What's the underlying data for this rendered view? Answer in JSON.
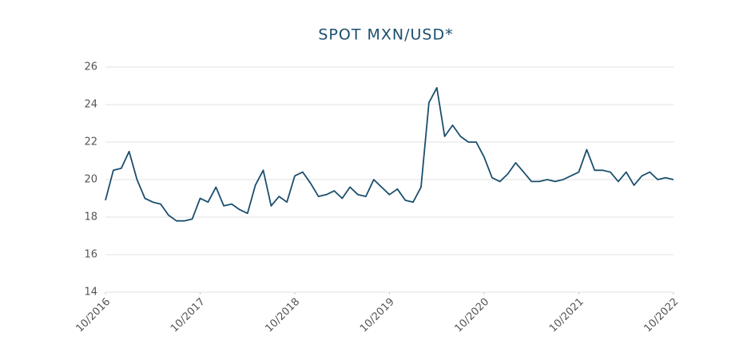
{
  "chart_data": {
    "type": "line",
    "title": "SPOT MXN/USD*",
    "x": [
      "2016-10",
      "2016-11",
      "2016-12",
      "2017-01",
      "2017-02",
      "2017-03",
      "2017-04",
      "2017-05",
      "2017-06",
      "2017-07",
      "2017-08",
      "2017-09",
      "2017-10",
      "2017-11",
      "2017-12",
      "2018-01",
      "2018-02",
      "2018-03",
      "2018-04",
      "2018-05",
      "2018-06",
      "2018-07",
      "2018-08",
      "2018-09",
      "2018-10",
      "2018-11",
      "2018-12",
      "2019-01",
      "2019-02",
      "2019-03",
      "2019-04",
      "2019-05",
      "2019-06",
      "2019-07",
      "2019-08",
      "2019-09",
      "2019-10",
      "2019-11",
      "2019-12",
      "2020-01",
      "2020-02",
      "2020-03",
      "2020-04",
      "2020-05",
      "2020-06",
      "2020-07",
      "2020-08",
      "2020-09",
      "2020-10",
      "2020-11",
      "2020-12",
      "2021-01",
      "2021-02",
      "2021-03",
      "2021-04",
      "2021-05",
      "2021-06",
      "2021-07",
      "2021-08",
      "2021-09",
      "2021-10",
      "2021-11",
      "2021-12",
      "2022-01",
      "2022-02",
      "2022-03",
      "2022-04",
      "2022-05",
      "2022-06",
      "2022-07",
      "2022-08",
      "2022-09",
      "2022-10"
    ],
    "series": [
      {
        "name": "MXN/USD",
        "color": "#1b4f6e",
        "values": [
          18.9,
          20.5,
          20.6,
          21.5,
          20.0,
          19.0,
          18.8,
          18.7,
          18.1,
          17.8,
          17.8,
          17.9,
          19.0,
          18.8,
          19.6,
          18.6,
          18.7,
          18.4,
          18.2,
          19.7,
          20.5,
          18.6,
          19.1,
          18.8,
          20.2,
          20.4,
          19.8,
          19.1,
          19.2,
          19.4,
          19.0,
          19.6,
          19.2,
          19.1,
          20.0,
          19.6,
          19.2,
          19.5,
          18.9,
          18.8,
          19.6,
          24.1,
          24.9,
          22.3,
          22.9,
          22.3,
          22.0,
          22.0,
          21.2,
          20.1,
          19.9,
          20.3,
          20.9,
          20.4,
          19.9,
          19.9,
          20.0,
          19.9,
          20.0,
          20.2,
          20.4,
          21.6,
          20.5,
          20.5,
          20.4,
          19.9,
          20.4,
          19.7,
          20.2,
          20.4,
          20.0,
          20.1,
          20.0
        ]
      }
    ],
    "xlim": [
      "2016-10",
      "2022-10"
    ],
    "xticks": [
      {
        "value": "2016-10",
        "label": "10/2016"
      },
      {
        "value": "2017-10",
        "label": "10/2017"
      },
      {
        "value": "2018-10",
        "label": "10/2018"
      },
      {
        "value": "2019-10",
        "label": "10/2019"
      },
      {
        "value": "2020-10",
        "label": "10/2020"
      },
      {
        "value": "2021-10",
        "label": "10/2021"
      },
      {
        "value": "2022-10",
        "label": "10/2022"
      }
    ],
    "ylim": [
      14,
      26
    ],
    "yticks": [
      14,
      16,
      18,
      20,
      22,
      24,
      26
    ],
    "grid": true
  }
}
